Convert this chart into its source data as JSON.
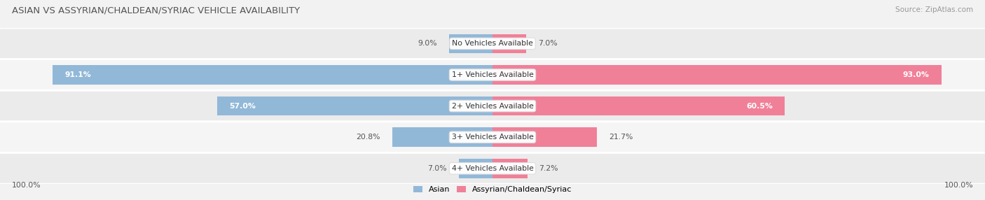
{
  "title": "ASIAN VS ASSYRIAN/CHALDEAN/SYRIAC VEHICLE AVAILABILITY",
  "source": "Source: ZipAtlas.com",
  "categories": [
    "No Vehicles Available",
    "1+ Vehicles Available",
    "2+ Vehicles Available",
    "3+ Vehicles Available",
    "4+ Vehicles Available"
  ],
  "asian_values": [
    9.0,
    91.1,
    57.0,
    20.8,
    7.0
  ],
  "assyrian_values": [
    7.0,
    93.0,
    60.5,
    21.7,
    7.2
  ],
  "max_value": 100.0,
  "asian_color": "#92b8d8",
  "assyrian_color": "#f08098",
  "row_colors": [
    "#ebebeb",
    "#f5f5f5"
  ],
  "bg_color": "#f2f2f2",
  "title_fontsize": 9.5,
  "source_fontsize": 7.5,
  "value_fontsize": 7.8,
  "cat_fontsize": 7.8,
  "legend_fontsize": 8.0,
  "bar_height": 0.62,
  "legend_asian": "Asian",
  "legend_assyrian": "Assyrian/Chaldean/Syriac"
}
